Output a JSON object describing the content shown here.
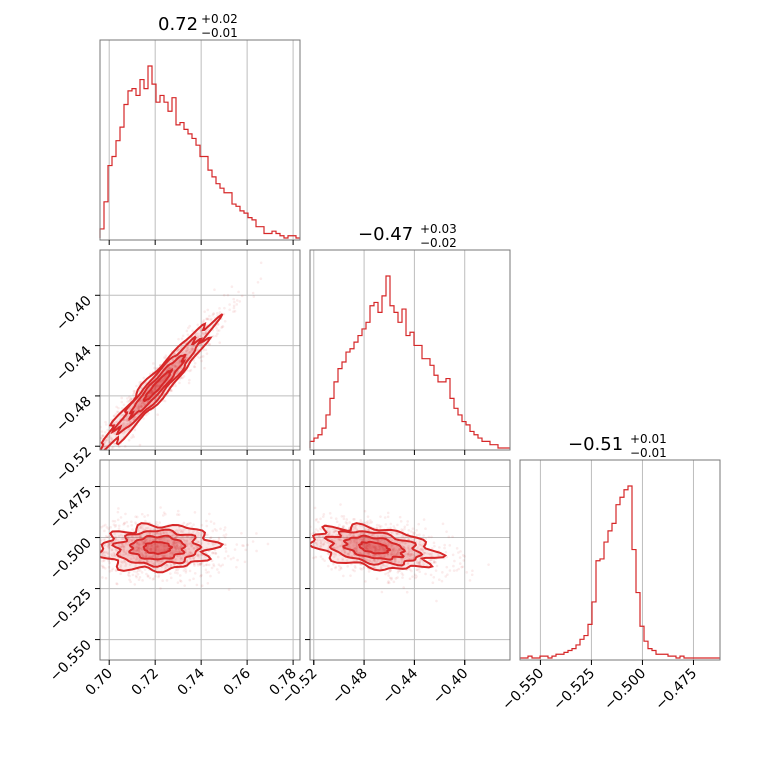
{
  "colors": {
    "series": "#d62728",
    "frame": "#777777",
    "grid": "#bdbdbd"
  },
  "chart_data": {
    "type": "corner",
    "color": "#d62728",
    "grid": true,
    "titles": [
      {
        "value": "0.72",
        "upper": "+0.02",
        "lower": "−0.01"
      },
      {
        "value": "−0.47",
        "upper": "+0.03",
        "lower": "−0.02"
      },
      {
        "value": "−0.51",
        "upper": "+0.01",
        "lower": "−0.01"
      }
    ],
    "parameters": [
      {
        "range": [
          0.696,
          0.783
        ],
        "ticks": [
          0.7,
          0.72,
          0.74,
          0.76,
          0.78
        ],
        "tick_labels": [
          "0.70",
          "0.72",
          "0.74",
          "0.76",
          "0.78"
        ]
      },
      {
        "range": [
          -0.523,
          -0.364
        ],
        "ticks": [
          -0.52,
          -0.48,
          -0.44,
          -0.4
        ],
        "tick_labels": [
          "−0.52",
          "−0.48",
          "−0.44",
          "−0.40"
        ]
      },
      {
        "range": [
          -0.56,
          -0.462
        ],
        "ticks": [
          -0.55,
          -0.525,
          -0.5,
          -0.475
        ],
        "tick_labels": [
          "−0.550",
          "−0.525",
          "−0.500",
          "−0.475"
        ]
      }
    ],
    "histograms": [
      {
        "param": 0,
        "start": 0.696,
        "bin_width": 0.00174,
        "counts": [
          4,
          16,
          32,
          36,
          43,
          49,
          59,
          65,
          66,
          63,
          70,
          66,
          76,
          68,
          60,
          63,
          60,
          56,
          62,
          50,
          51,
          48,
          46,
          44,
          41,
          36,
          36,
          30,
          27,
          24,
          22,
          20,
          20,
          15,
          14,
          12,
          11,
          9,
          8,
          5,
          5,
          2,
          2,
          3,
          2,
          1,
          0,
          1,
          1,
          0
        ]
      },
      {
        "param": 1,
        "start": -0.523,
        "bin_width": 0.00318,
        "counts": [
          2,
          3,
          4,
          6,
          10,
          15,
          20,
          24,
          26,
          29,
          30,
          32,
          34,
          36,
          38,
          43,
          44,
          41,
          46,
          52,
          43,
          41,
          38,
          42,
          34,
          35,
          31,
          31,
          27,
          27,
          25,
          22,
          20,
          20,
          21,
          15,
          12,
          10,
          8,
          7,
          5,
          4,
          3,
          2,
          2,
          1,
          1,
          0,
          0,
          0
        ]
      },
      {
        "param": 2,
        "start": -0.56,
        "bin_width": 0.00196,
        "counts": [
          0,
          0,
          1,
          0,
          0,
          1,
          1,
          0,
          1,
          2,
          2,
          3,
          4,
          5,
          7,
          10,
          12,
          18,
          30,
          52,
          53,
          62,
          68,
          72,
          82,
          86,
          90,
          92,
          58,
          35,
          17,
          9,
          5,
          4,
          2,
          2,
          2,
          1,
          1,
          0,
          1,
          0,
          0,
          0,
          0,
          0,
          0,
          0,
          0,
          0
        ]
      }
    ],
    "joint": [
      {
        "x": 0,
        "y": 1,
        "mean": [
          0.721,
          -0.472
        ],
        "sd": [
          0.012,
          0.024
        ],
        "rho": 0.96
      },
      {
        "x": 0,
        "y": 2,
        "mean": [
          0.721,
          -0.505
        ],
        "sd": [
          0.012,
          0.0055
        ],
        "rho": -0.05
      },
      {
        "x": 1,
        "y": 2,
        "mean": [
          -0.472,
          -0.505
        ],
        "sd": [
          0.024,
          0.0055
        ],
        "rho": -0.45
      }
    ]
  }
}
